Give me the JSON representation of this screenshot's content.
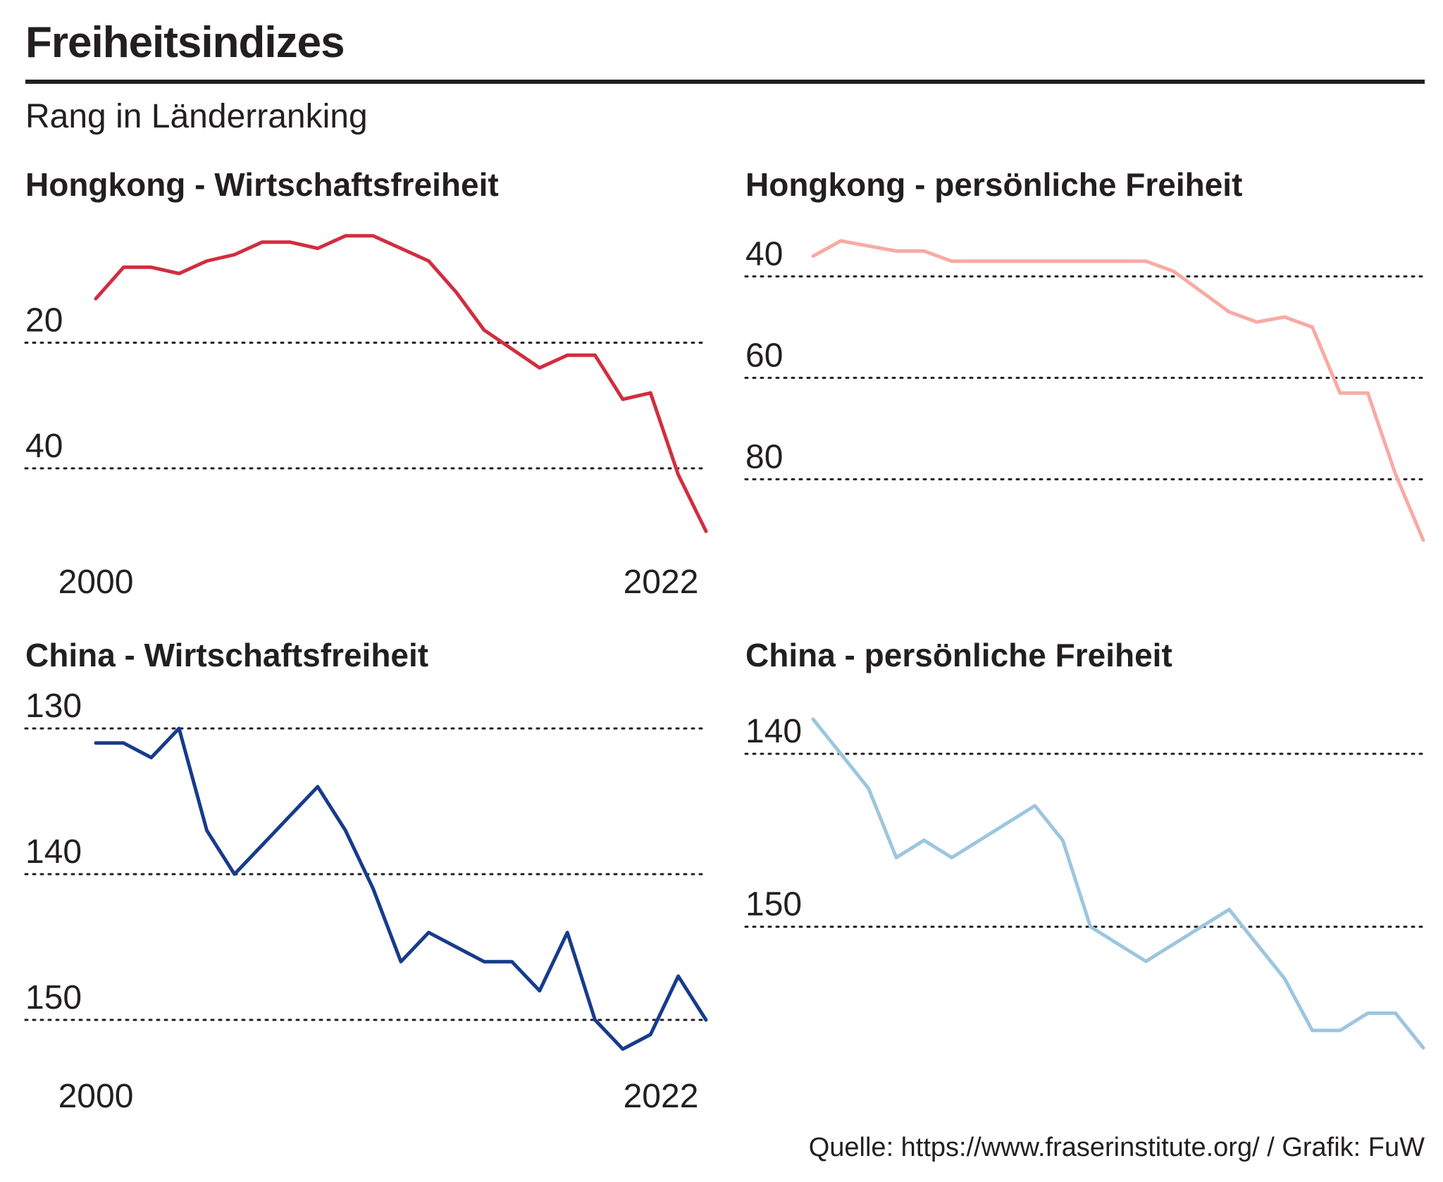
{
  "title": "Freiheitsindizes",
  "subtitle": "Rang in Länderranking",
  "source": "Quelle: https://www.fraserinstitute.org/ / Grafik: FuW",
  "chart_data": [
    {
      "type": "line",
      "title": "Hongkong - Wirtschaftsfreiheit",
      "color": "#d12e3f",
      "x": [
        2000,
        2001,
        2002,
        2003,
        2004,
        2005,
        2006,
        2007,
        2008,
        2009,
        2010,
        2011,
        2012,
        2013,
        2014,
        2015,
        2016,
        2017,
        2018,
        2019,
        2020,
        2021,
        2022
      ],
      "values": [
        13,
        8,
        8,
        9,
        7,
        6,
        4,
        4,
        5,
        3,
        3,
        5,
        7,
        12,
        18,
        21,
        24,
        22,
        22,
        29,
        28,
        41,
        50
      ],
      "yticks": [
        20,
        40
      ],
      "ylim": [
        0,
        52
      ],
      "inverted": true,
      "xtick_labels": [
        "2000",
        "2022"
      ]
    },
    {
      "type": "line",
      "title": "Hongkong - persönliche Freiheit",
      "color": "#f8aaa4",
      "x": [
        2000,
        2001,
        2002,
        2003,
        2004,
        2005,
        2006,
        2007,
        2008,
        2009,
        2010,
        2011,
        2012,
        2013,
        2014,
        2015,
        2016,
        2017,
        2018,
        2019,
        2020,
        2021,
        2022
      ],
      "values": [
        36,
        33,
        34,
        35,
        35,
        37,
        37,
        37,
        37,
        37,
        37,
        37,
        37,
        39,
        43,
        47,
        49,
        48,
        50,
        63,
        63,
        79,
        92
      ],
      "yticks": [
        40,
        60,
        80
      ],
      "ylim": [
        28,
        93
      ],
      "inverted": true,
      "xtick_labels": []
    },
    {
      "type": "line",
      "title": "China - Wirtschaftsfreiheit",
      "color": "#173b8c",
      "x": [
        2000,
        2001,
        2002,
        2003,
        2004,
        2005,
        2006,
        2007,
        2008,
        2009,
        2010,
        2011,
        2012,
        2013,
        2014,
        2015,
        2016,
        2017,
        2018,
        2019,
        2020,
        2021,
        2022
      ],
      "values": [
        131,
        131,
        132,
        130,
        137,
        140,
        138,
        136,
        134,
        137,
        141,
        146,
        144,
        145,
        146,
        146,
        148,
        144,
        150,
        152,
        151,
        147,
        150
      ],
      "yticks": [
        130,
        140,
        150
      ],
      "ylim": [
        127,
        153
      ],
      "inverted": true,
      "xtick_labels": [
        "2000",
        "2022"
      ]
    },
    {
      "type": "line",
      "title": "China - persönliche Freiheit",
      "color": "#9cc6df",
      "x": [
        2000,
        2001,
        2002,
        2003,
        2004,
        2005,
        2006,
        2007,
        2008,
        2009,
        2010,
        2011,
        2012,
        2013,
        2014,
        2015,
        2016,
        2017,
        2018,
        2019,
        2020,
        2021,
        2022
      ],
      "values": [
        138,
        140,
        142,
        146,
        145,
        146,
        145,
        144,
        143,
        145,
        150,
        151,
        152,
        151,
        150,
        149,
        151,
        153,
        156,
        156,
        155,
        155,
        157
      ],
      "yticks": [
        140,
        150
      ],
      "ylim": [
        136,
        158
      ],
      "inverted": true,
      "xtick_labels": []
    }
  ]
}
